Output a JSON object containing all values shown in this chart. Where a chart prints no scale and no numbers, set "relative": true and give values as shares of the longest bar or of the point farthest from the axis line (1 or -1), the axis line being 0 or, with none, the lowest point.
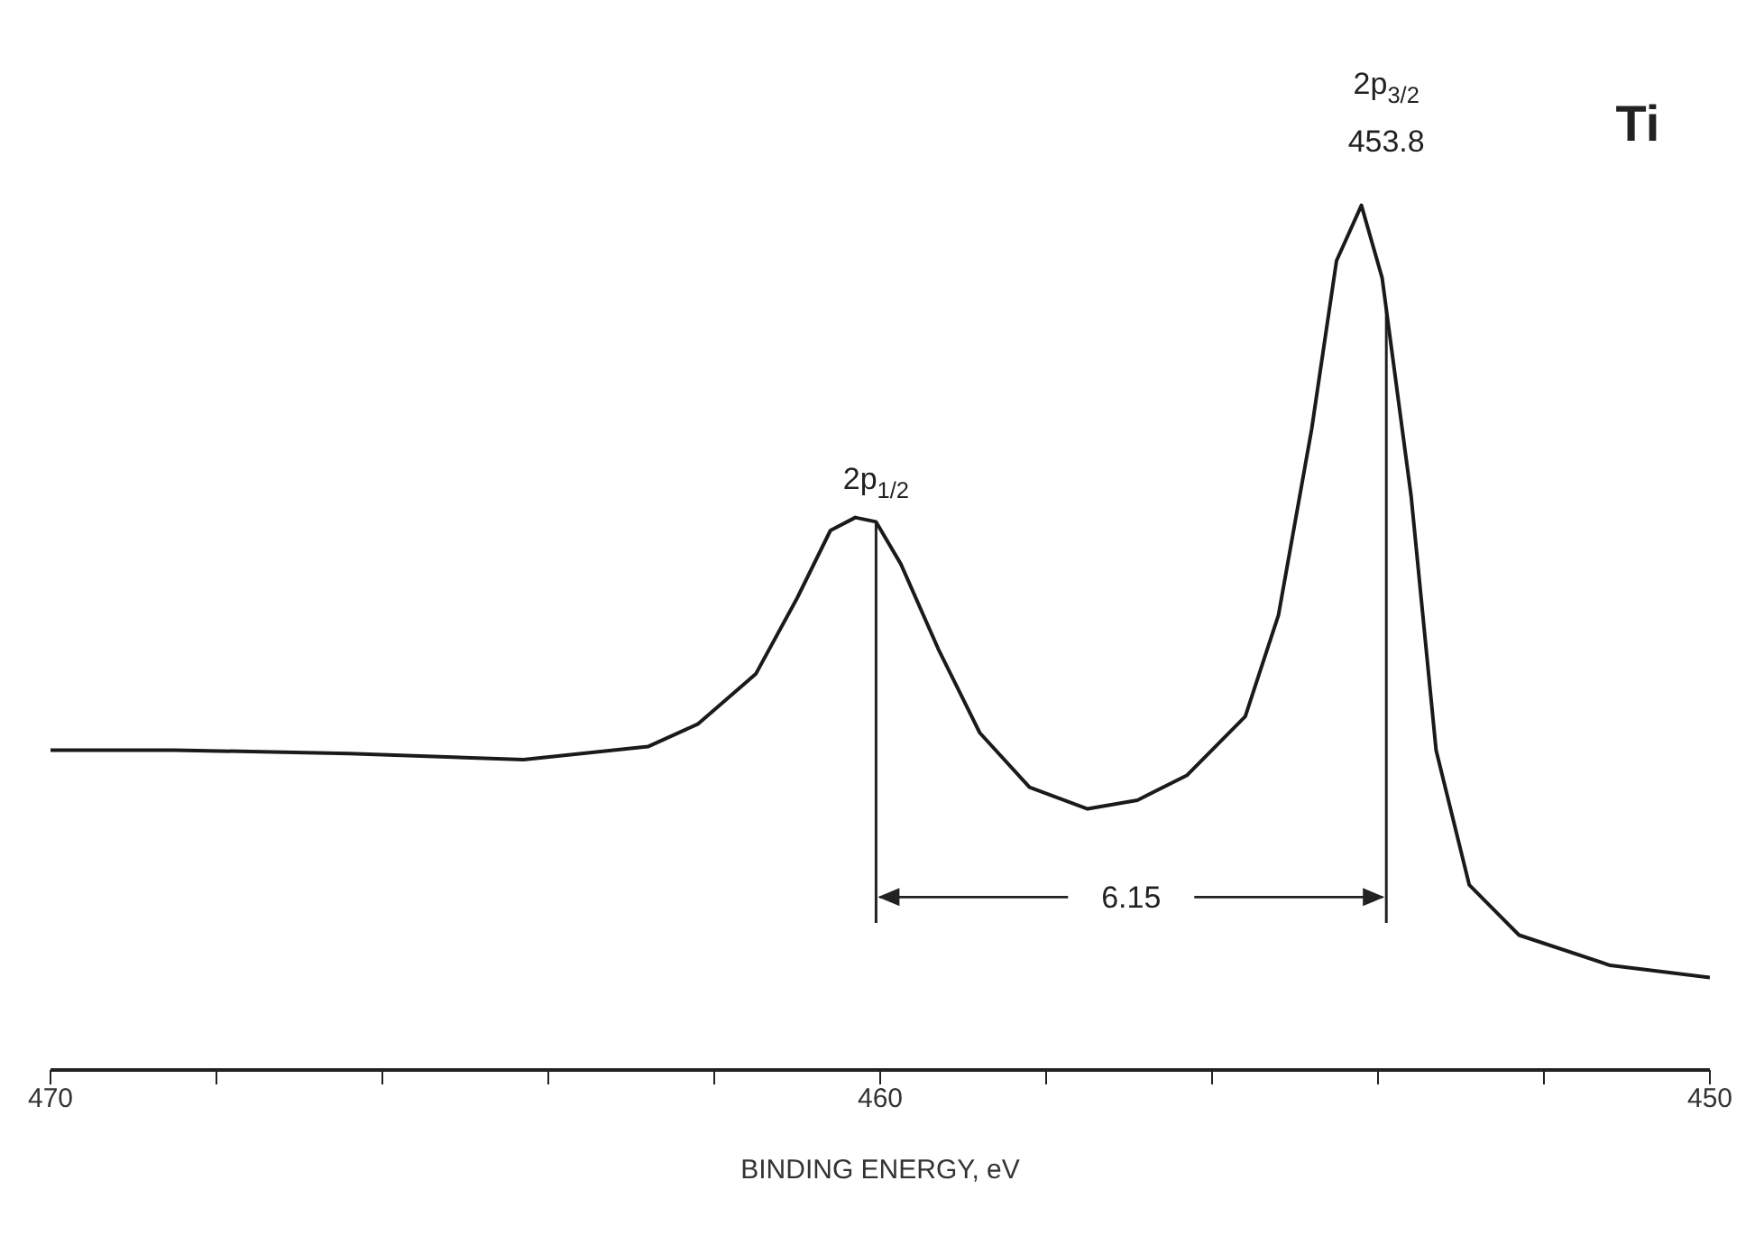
{
  "chart_data": {
    "type": "line",
    "relative": true,
    "xlabel": "BINDING ENERGY, eV",
    "x": [
      470,
      468.5,
      466.4,
      464.3,
      462.8,
      462.2,
      461.5,
      461.0,
      460.6,
      460.3,
      460.05,
      459.75,
      459.3,
      458.8,
      458.2,
      457.5,
      456.9,
      456.3,
      455.6,
      455.2,
      454.8,
      454.5,
      454.2,
      453.95,
      453.6,
      453.3,
      452.9,
      452.3,
      451.2,
      450
    ],
    "series": [
      {
        "color": "#1a1a1a",
        "values": [
          0.37,
          0.37,
          0.366,
          0.359,
          0.374,
          0.4,
          0.458,
          0.546,
          0.624,
          0.639,
          0.634,
          0.585,
          0.487,
          0.39,
          0.327,
          0.302,
          0.312,
          0.341,
          0.409,
          0.526,
          0.741,
          0.936,
          1.0,
          0.916,
          0.663,
          0.37,
          0.214,
          0.156,
          0.121,
          0.107
        ]
      }
    ],
    "xlim": [
      470,
      450
    ],
    "xticks": [
      470,
      {
        "value": 468,
        "label": null
      },
      {
        "value": 466,
        "label": null
      },
      {
        "value": 464,
        "label": null
      },
      {
        "value": 462,
        "label": null
      },
      460,
      {
        "value": 458,
        "label": null
      },
      {
        "value": 456,
        "label": null
      },
      {
        "value": 454,
        "label": null
      },
      {
        "value": 452,
        "label": null
      },
      450
    ],
    "ref_lines": [
      {
        "axis": "x",
        "value": 460.05
      },
      {
        "axis": "x",
        "value": 453.9
      }
    ],
    "annotations": [
      "Ti",
      "2p$_{1/2}$",
      "2p$_{3/2}$",
      "453.8",
      "6.15"
    ],
    "marker": "none",
    "line_style": "solid"
  }
}
